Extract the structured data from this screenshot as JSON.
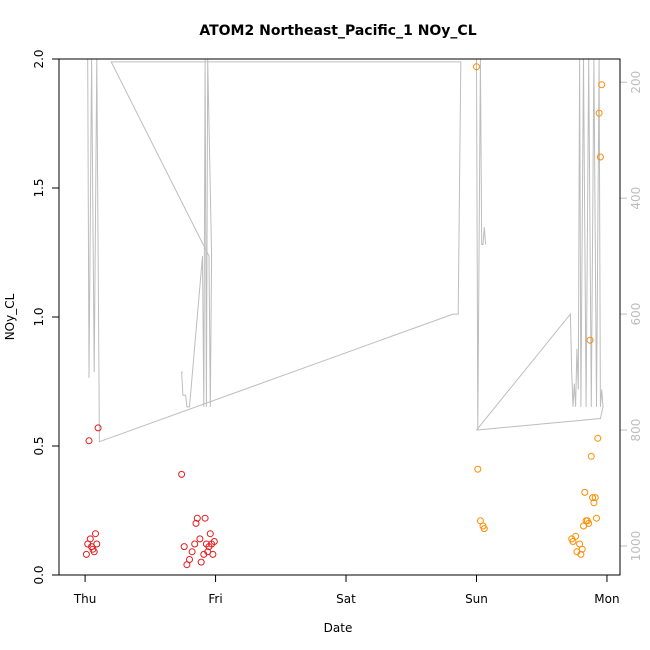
{
  "chart_data": {
    "type": "scatter",
    "title": "ATOM2 Northeast_Pacific_1 NOy_CL",
    "xlabel": "Date",
    "ylabel": "NOy_CL",
    "x_unit": "days since Thursday 00:00",
    "xlim": [
      -0.2,
      4.1
    ],
    "ylim": [
      0,
      2.0
    ],
    "x_ticks": [
      {
        "value": 0,
        "label": "Thu"
      },
      {
        "value": 1,
        "label": "Fri"
      },
      {
        "value": 2,
        "label": "Sat"
      },
      {
        "value": 3,
        "label": "Sun"
      },
      {
        "value": 4,
        "label": "Mon"
      }
    ],
    "y_ticks": [
      {
        "value": 0.0,
        "label": "0.0"
      },
      {
        "value": 0.5,
        "label": "0.5"
      },
      {
        "value": 1.0,
        "label": "1.0"
      },
      {
        "value": 1.5,
        "label": "1.5"
      },
      {
        "value": 2.0,
        "label": "2.0"
      }
    ],
    "y2": {
      "label": "",
      "lim": [
        1050,
        160
      ],
      "ticks": [
        {
          "value": 200,
          "label": "200"
        },
        {
          "value": 400,
          "label": "400"
        },
        {
          "value": 600,
          "label": "600"
        },
        {
          "value": 800,
          "label": "800"
        },
        {
          "value": 1000,
          "label": "1000"
        }
      ],
      "color": "#bdbdbd"
    },
    "grid": false,
    "legend": "none",
    "series": [
      {
        "color": "#e41a1c",
        "kind": "points",
        "points": [
          [
            0.01,
            0.08
          ],
          [
            0.02,
            0.12
          ],
          [
            0.03,
            0.52
          ],
          [
            0.04,
            0.14
          ],
          [
            0.05,
            0.11
          ],
          [
            0.06,
            0.1
          ],
          [
            0.07,
            0.09
          ],
          [
            0.08,
            0.16
          ],
          [
            0.09,
            0.12
          ],
          [
            0.1,
            0.57
          ],
          [
            0.74,
            0.39
          ],
          [
            0.76,
            0.11
          ],
          [
            0.78,
            0.04
          ],
          [
            0.8,
            0.06
          ],
          [
            0.82,
            0.09
          ],
          [
            0.84,
            0.12
          ],
          [
            0.85,
            0.2
          ],
          [
            0.86,
            0.22
          ],
          [
            0.88,
            0.14
          ],
          [
            0.89,
            0.05
          ],
          [
            0.91,
            0.08
          ],
          [
            0.92,
            0.22
          ],
          [
            0.93,
            0.12
          ],
          [
            0.94,
            0.09
          ],
          [
            0.95,
            0.11
          ],
          [
            0.96,
            0.16
          ],
          [
            0.97,
            0.12
          ],
          [
            0.98,
            0.08
          ],
          [
            0.99,
            0.13
          ]
        ]
      },
      {
        "color": "#ff8c00",
        "kind": "points",
        "points": [
          [
            3.0,
            1.97
          ],
          [
            3.01,
            0.41
          ],
          [
            3.03,
            0.21
          ],
          [
            3.05,
            0.19
          ],
          [
            3.06,
            0.18
          ],
          [
            3.73,
            0.14
          ],
          [
            3.74,
            0.13
          ],
          [
            3.76,
            0.15
          ],
          [
            3.77,
            0.09
          ],
          [
            3.79,
            0.12
          ],
          [
            3.8,
            0.08
          ],
          [
            3.81,
            0.1
          ],
          [
            3.82,
            0.19
          ],
          [
            3.83,
            0.32
          ],
          [
            3.84,
            0.21
          ],
          [
            3.85,
            0.21
          ],
          [
            3.86,
            0.2
          ],
          [
            3.87,
            0.91
          ],
          [
            3.88,
            0.46
          ],
          [
            3.89,
            0.3
          ],
          [
            3.9,
            0.28
          ],
          [
            3.91,
            0.3
          ],
          [
            3.92,
            0.22
          ],
          [
            3.93,
            0.53
          ],
          [
            3.94,
            1.79
          ],
          [
            3.95,
            1.62
          ],
          [
            3.96,
            1.9
          ]
        ]
      },
      {
        "color": "#bdbdbd",
        "kind": "line",
        "axis": "y2",
        "points": [
          [
            -0.01,
            160
          ],
          [
            0.02,
            160
          ],
          [
            0.03,
            710
          ],
          [
            0.05,
            160
          ],
          [
            0.07,
            700
          ],
          [
            0.09,
            160
          ],
          [
            0.11,
            820
          ],
          [
            2.82,
            600
          ],
          [
            2.86,
            600
          ],
          [
            2.88,
            165
          ],
          [
            0.2,
            165
          ],
          [
            0.95,
            500
          ],
          [
            0.96,
            760
          ],
          [
            0.97,
            500
          ],
          [
            0.94,
            160
          ],
          [
            0.93,
            760
          ],
          [
            0.92,
            160
          ],
          [
            0.91,
            760
          ],
          [
            0.9,
            500
          ],
          [
            0.8,
            760
          ],
          [
            0.78,
            760
          ],
          [
            0.77,
            740
          ],
          [
            0.75,
            740
          ],
          [
            0.74,
            700
          ],
          [
            0.75,
            700
          ]
        ]
      },
      {
        "color": "#bdbdbd",
        "kind": "line",
        "axis": "y2",
        "points": [
          [
            3.0,
            160
          ],
          [
            3.01,
            800
          ],
          [
            3.03,
            160
          ],
          [
            3.04,
            480
          ],
          [
            3.05,
            480
          ],
          [
            3.06,
            450
          ],
          [
            3.07,
            480
          ]
        ]
      },
      {
        "color": "#bdbdbd",
        "kind": "line",
        "axis": "y2",
        "points": [
          [
            3.0,
            800
          ],
          [
            3.95,
            780
          ],
          [
            3.97,
            760
          ],
          [
            3.96,
            730
          ],
          [
            3.95,
            760
          ],
          [
            3.94,
            160
          ],
          [
            3.92,
            760
          ],
          [
            3.9,
            160
          ],
          [
            3.88,
            760
          ],
          [
            3.86,
            160
          ],
          [
            3.84,
            760
          ],
          [
            3.82,
            160
          ],
          [
            3.8,
            760
          ],
          [
            3.79,
            160
          ],
          [
            3.78,
            730
          ],
          [
            3.77,
            660
          ],
          [
            3.76,
            760
          ],
          [
            3.75,
            720
          ],
          [
            3.74,
            760
          ],
          [
            3.73,
            700
          ],
          [
            3.72,
            600
          ],
          [
            3.0,
            800
          ]
        ]
      }
    ]
  }
}
